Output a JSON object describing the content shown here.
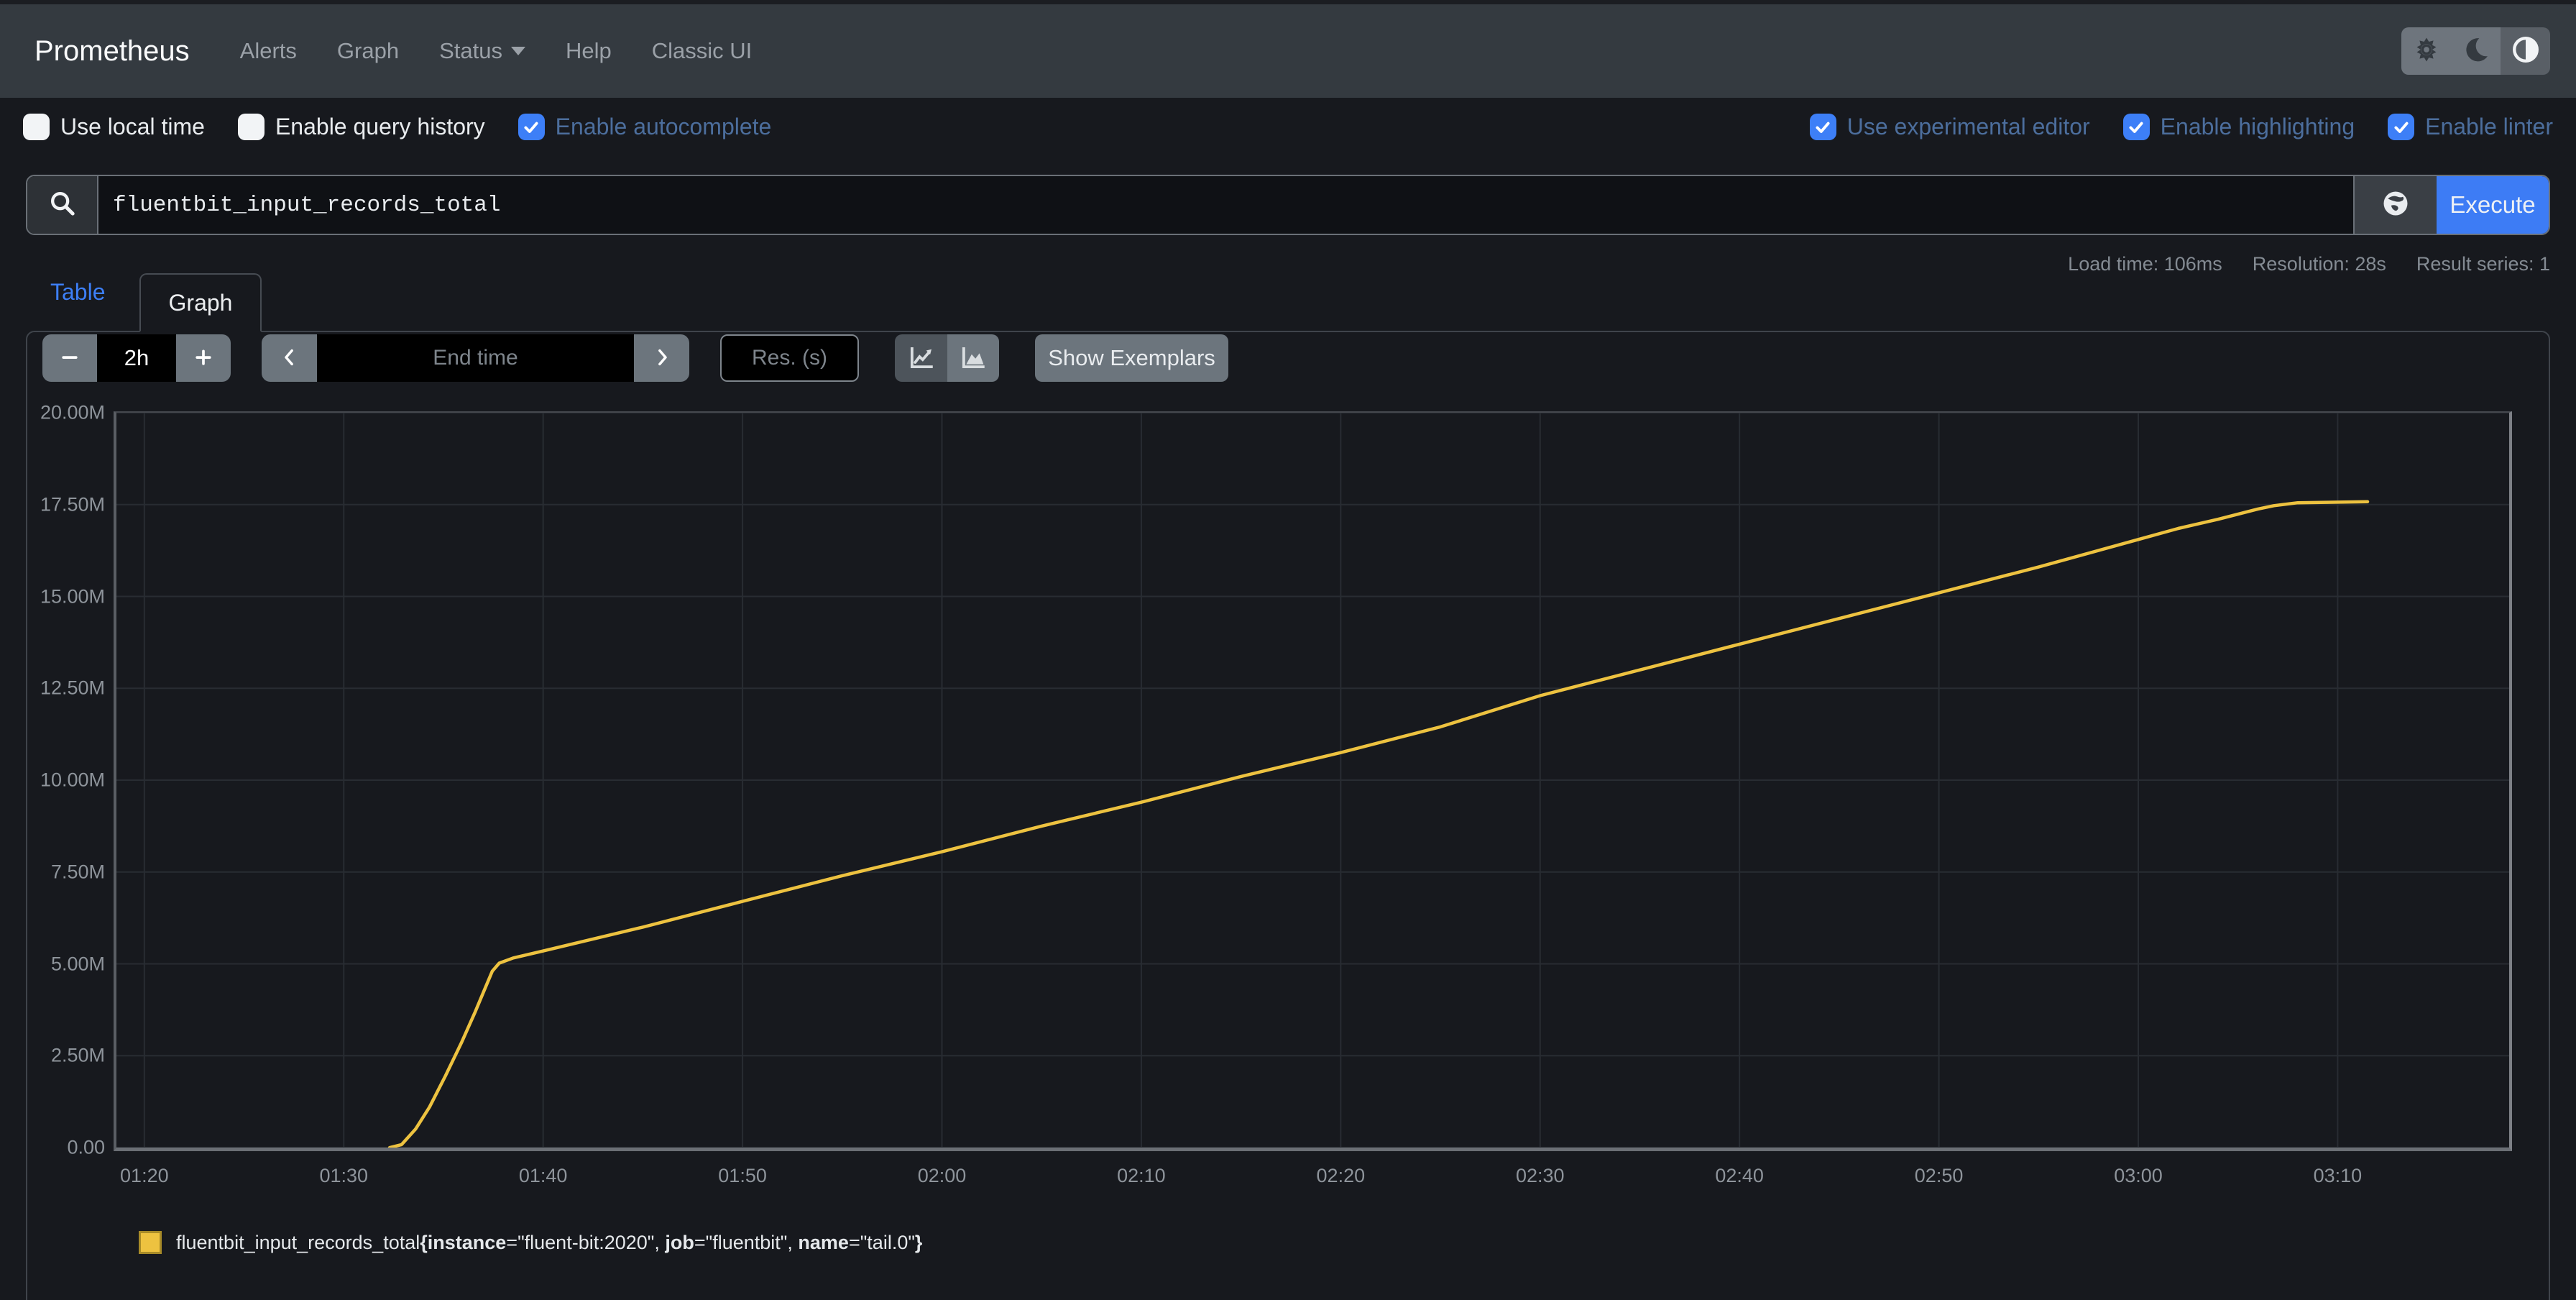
{
  "colors": {
    "accent_blue": "#3d7ff7",
    "series_yellow": "#edc240",
    "navbar_bg": "#343a40",
    "page_bg": "#17191e",
    "checked_label": "#4c6e9d"
  },
  "navbar": {
    "brand": "Prometheus",
    "links": [
      {
        "label": "Alerts"
      },
      {
        "label": "Graph"
      },
      {
        "label": "Status"
      },
      {
        "label": "Help"
      },
      {
        "label": "Classic UI"
      }
    ]
  },
  "theme_toggle": {
    "options": [
      "light",
      "dark",
      "auto"
    ],
    "active": "auto"
  },
  "settings": {
    "left": [
      {
        "label": "Use local time",
        "checked": false
      },
      {
        "label": "Enable query history",
        "checked": false
      },
      {
        "label": "Enable autocomplete",
        "checked": true
      }
    ],
    "right": [
      {
        "label": "Use experimental editor",
        "checked": true
      },
      {
        "label": "Enable highlighting",
        "checked": true
      },
      {
        "label": "Enable linter",
        "checked": true
      }
    ]
  },
  "query": {
    "value": "fluentbit_input_records_total",
    "execute_label": "Execute"
  },
  "stats": {
    "load_time": "Load time: 106ms",
    "resolution": "Resolution: 28s",
    "result_series": "Result series: 1"
  },
  "tabs": {
    "table_label": "Table",
    "graph_label": "Graph",
    "active": "Graph"
  },
  "controls": {
    "range_value": "2h",
    "end_time_placeholder": "End time",
    "res_placeholder": "Res. (s)",
    "show_exemplars_label": "Show Exemplars"
  },
  "chart_data": {
    "type": "line",
    "title": "",
    "xlabel": "",
    "ylabel": "",
    "x_range_minutes": [
      -1.4,
      118.6
    ],
    "x_tick_minutes": [
      0,
      10,
      20,
      30,
      40,
      50,
      60,
      70,
      80,
      90,
      100,
      110
    ],
    "x_tick_labels": [
      "01:20",
      "01:30",
      "01:40",
      "01:50",
      "02:00",
      "02:10",
      "02:20",
      "02:30",
      "02:40",
      "02:50",
      "03:00",
      "03:10"
    ],
    "t_unit": "minutes_after_01:20",
    "ylim": [
      0,
      20
    ],
    "y_unit": "millions",
    "y_ticks": [
      0,
      2.5,
      5,
      7.5,
      10,
      12.5,
      15,
      17.5,
      20
    ],
    "y_tick_labels": [
      "0.00",
      "2.50M",
      "5.00M",
      "7.50M",
      "10.00M",
      "12.50M",
      "15.00M",
      "17.50M",
      "20.00M"
    ],
    "grid": true,
    "legend_position": "bottom-left",
    "series": [
      {
        "name": "fluentbit_input_records_total",
        "labels": {
          "instance": "fluent-bit:2020",
          "job": "fluentbit",
          "name": "tail.0"
        },
        "color": "#edc240",
        "points": [
          [
            12.3,
            0
          ],
          [
            12.9,
            0.08
          ],
          [
            13.6,
            0.5
          ],
          [
            14.3,
            1.1
          ],
          [
            15.1,
            1.95
          ],
          [
            15.9,
            2.85
          ],
          [
            16.6,
            3.7
          ],
          [
            17.1,
            4.35
          ],
          [
            17.45,
            4.8
          ],
          [
            17.8,
            5.02
          ],
          [
            18.5,
            5.16
          ],
          [
            20,
            5.35
          ],
          [
            25,
            6.0
          ],
          [
            30,
            6.7
          ],
          [
            35,
            7.4
          ],
          [
            40,
            8.05
          ],
          [
            45,
            8.75
          ],
          [
            50,
            9.4
          ],
          [
            55,
            10.1
          ],
          [
            60,
            10.75
          ],
          [
            65,
            11.45
          ],
          [
            70,
            12.3
          ],
          [
            75,
            13.0
          ],
          [
            80,
            13.7
          ],
          [
            85,
            14.4
          ],
          [
            90,
            15.1
          ],
          [
            95,
            15.8
          ],
          [
            100,
            16.55
          ],
          [
            102,
            16.85
          ],
          [
            104,
            17.1
          ],
          [
            106,
            17.38
          ],
          [
            106.8,
            17.47
          ],
          [
            108,
            17.55
          ],
          [
            111.5,
            17.58
          ]
        ]
      }
    ]
  }
}
